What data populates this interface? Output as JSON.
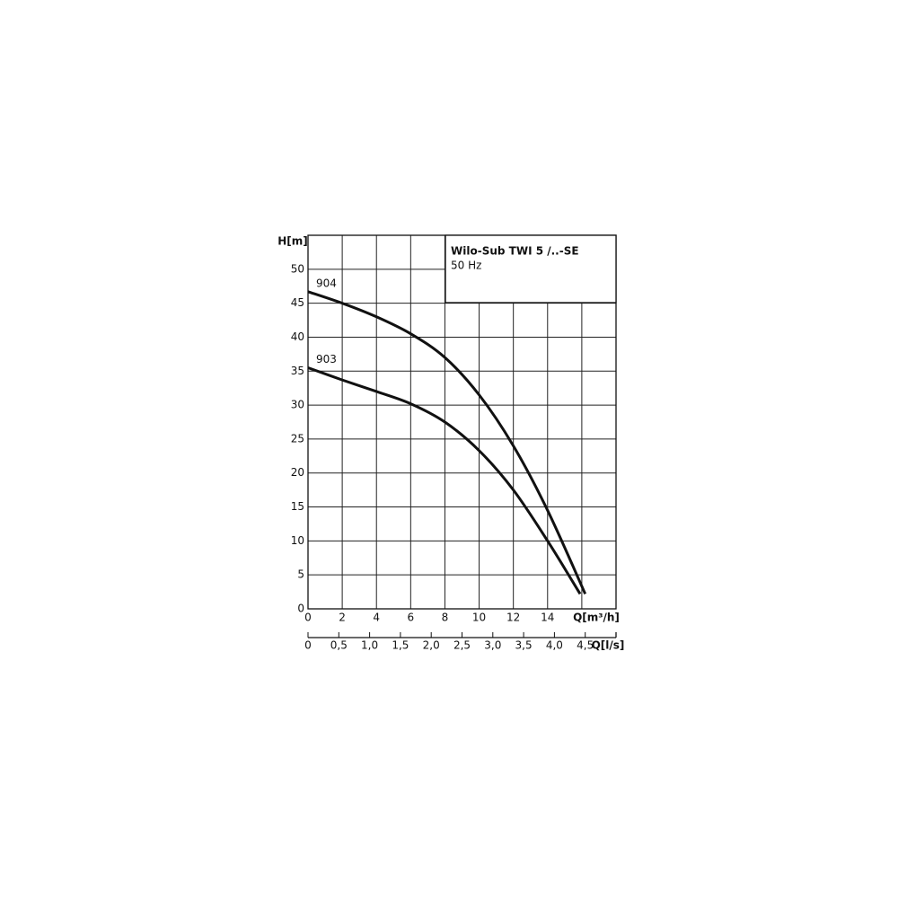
{
  "chart_data": {
    "type": "line",
    "title": "Wilo-Sub TWI 5 /..-SE",
    "subtitle": "50 Hz",
    "y_label": "H[m]",
    "x_label": "Q[m³/h]",
    "x2_label": "Q[l/s]",
    "xlim": [
      0,
      18
    ],
    "xticks": [
      0,
      2,
      4,
      6,
      8,
      10,
      12,
      14,
      {
        "value": 16,
        "label": null
      }
    ],
    "ylim": [
      0,
      55
    ],
    "yticks": [
      0,
      5,
      10,
      15,
      20,
      25,
      30,
      35,
      40,
      45,
      50
    ],
    "x2lim": [
      0,
      5
    ],
    "x2ticks": [
      0,
      {
        "value": 0.5,
        "label": "0,5"
      },
      {
        "value": 1.0,
        "label": "1,0"
      },
      {
        "value": 1.5,
        "label": "1,5"
      },
      {
        "value": 2.0,
        "label": "2,0"
      },
      {
        "value": 2.5,
        "label": "2,5"
      },
      {
        "value": 3.0,
        "label": "3,0"
      },
      {
        "value": 3.5,
        "label": "3,5"
      },
      {
        "value": 4.0,
        "label": "4,0"
      },
      {
        "value": 4.5,
        "label": "4,5"
      }
    ],
    "grid": true,
    "series": [
      {
        "name": "904",
        "color": "#111111",
        "x": [
          0,
          2,
          4,
          6,
          8,
          10,
          12,
          14,
          16.2
        ],
        "values": [
          46.7,
          45,
          43,
          40.5,
          37,
          31.5,
          24,
          14.5,
          2.2
        ]
      },
      {
        "name": "903",
        "color": "#111111",
        "x": [
          0,
          2,
          4,
          6,
          8,
          10,
          12,
          14,
          15.9
        ],
        "values": [
          35.5,
          33.7,
          32,
          30.2,
          27.5,
          23.3,
          17.5,
          10,
          2.2
        ]
      }
    ]
  }
}
